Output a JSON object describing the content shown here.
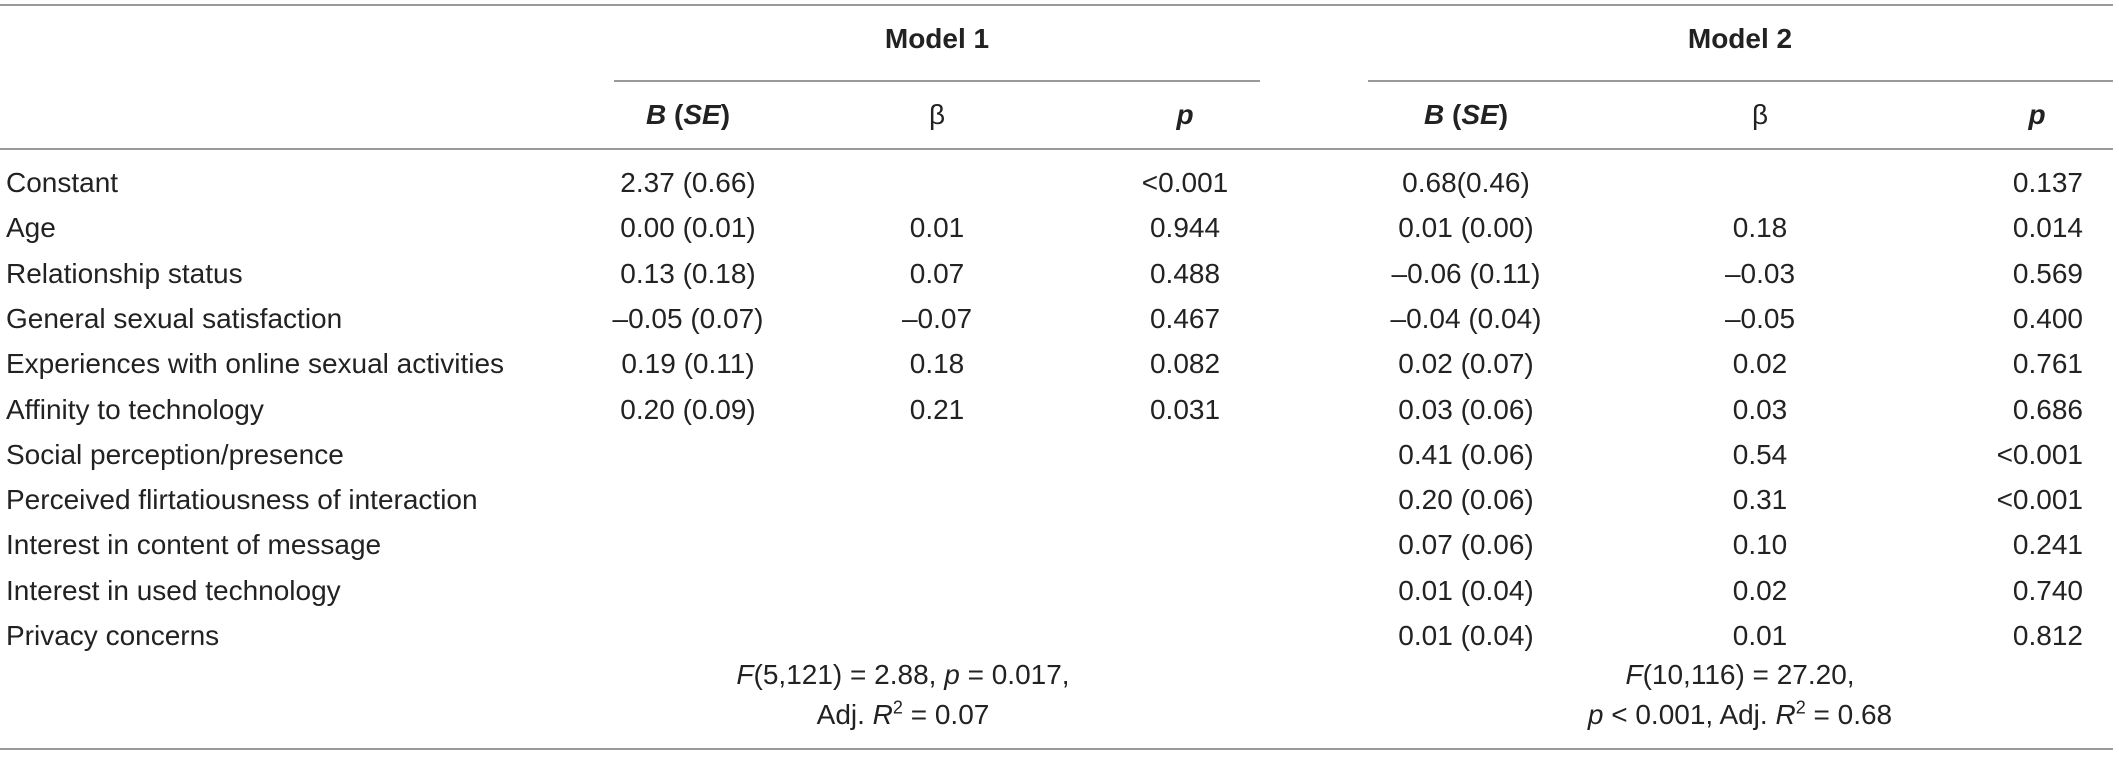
{
  "table": {
    "model1_title": "Model 1",
    "model2_title": "Model 2",
    "col_headers": {
      "b": "B",
      "se_open": " (",
      "se": "SE",
      "se_close": ")",
      "beta": "β",
      "p": "p"
    },
    "rows": [
      {
        "label": "Constant",
        "m1_b": "2.37 (0.66)",
        "m1_beta": "",
        "m1_p": "<0.001",
        "m2_b": "0.68(0.46)",
        "m2_beta": "",
        "m2_p": "0.137"
      },
      {
        "label": "Age",
        "m1_b": "0.00 (0.01)",
        "m1_beta": "0.01",
        "m1_p": "0.944",
        "m2_b": "0.01 (0.00)",
        "m2_beta": "0.18",
        "m2_p": "0.014"
      },
      {
        "label": "Relationship status",
        "m1_b": "0.13 (0.18)",
        "m1_beta": "0.07",
        "m1_p": "0.488",
        "m2_b": "–0.06 (0.11)",
        "m2_beta": "–0.03",
        "m2_p": "0.569"
      },
      {
        "label": "General sexual satisfaction",
        "m1_b": "–0.05 (0.07)",
        "m1_beta": "–0.07",
        "m1_p": "0.467",
        "m2_b": "–0.04 (0.04)",
        "m2_beta": "–0.05",
        "m2_p": "0.400"
      },
      {
        "label": "Experiences with online sexual activities",
        "m1_b": "0.19 (0.11)",
        "m1_beta": "0.18",
        "m1_p": "0.082",
        "m2_b": "0.02 (0.07)",
        "m2_beta": "0.02",
        "m2_p": "0.761"
      },
      {
        "label": "Affinity to technology",
        "m1_b": "0.20 (0.09)",
        "m1_beta": "0.21",
        "m1_p": "0.031",
        "m2_b": "0.03 (0.06)",
        "m2_beta": "0.03",
        "m2_p": "0.686"
      },
      {
        "label": "Social perception/presence",
        "m1_b": "",
        "m1_beta": "",
        "m1_p": "",
        "m2_b": "0.41 (0.06)",
        "m2_beta": "0.54",
        "m2_p": "<0.001"
      },
      {
        "label": "Perceived flirtatiousness of interaction",
        "m1_b": "",
        "m1_beta": "",
        "m1_p": "",
        "m2_b": "0.20 (0.06)",
        "m2_beta": "0.31",
        "m2_p": "<0.001"
      },
      {
        "label": "Interest in content of message",
        "m1_b": "",
        "m1_beta": "",
        "m1_p": "",
        "m2_b": "0.07 (0.06)",
        "m2_beta": "0.10",
        "m2_p": "0.241"
      },
      {
        "label": "Interest in used technology",
        "m1_b": "",
        "m1_beta": "",
        "m1_p": "",
        "m2_b": "0.01 (0.04)",
        "m2_beta": "0.02",
        "m2_p": "0.740"
      },
      {
        "label": "Privacy concerns",
        "m1_b": "",
        "m1_beta": "",
        "m1_p": "",
        "m2_b": "0.01 (0.04)",
        "m2_beta": "0.01",
        "m2_p": "0.812"
      }
    ],
    "fit": {
      "m1": {
        "f": "F",
        "f_args": "(5,121) = 2.88, ",
        "p": "p",
        "p_val": " = 0.017,",
        "adj": "Adj. ",
        "r": "R",
        "sup": "2",
        "r_val": " = 0.07"
      },
      "m2": {
        "f": "F",
        "f_args": "(10,116) = 27.20,",
        "p": "p",
        "p_val": " < 0.001, Adj. ",
        "r": "R",
        "sup": "2",
        "r_val": " = 0.68"
      }
    }
  }
}
